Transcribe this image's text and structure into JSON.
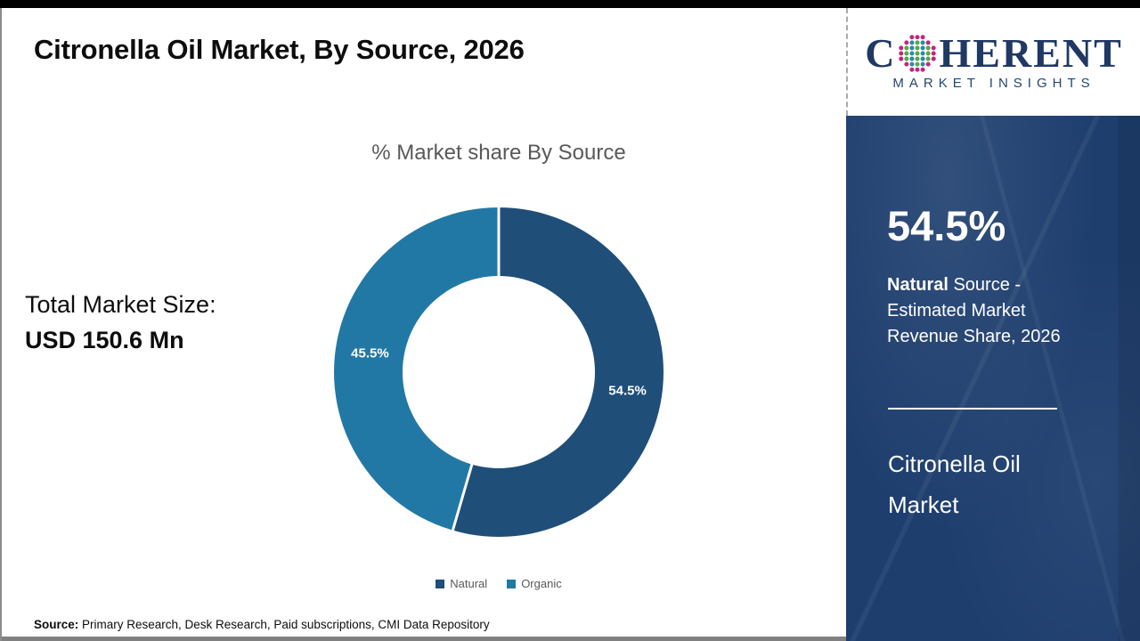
{
  "page": {
    "title": "Citronella Oil Market, By Source, 2026",
    "source_label": "Source:",
    "source_text": " Primary Research, Desk Research, Paid subscriptions, CMI Data Repository"
  },
  "left_block": {
    "total_label": "Total Market Size:",
    "total_value": "USD 150.6 Mn"
  },
  "chart_data": {
    "type": "pie",
    "subtype": "donut",
    "title": "% Market share By Source",
    "categories": [
      "Natural",
      "Organic"
    ],
    "values": [
      54.5,
      45.5
    ],
    "value_labels": [
      "54.5%",
      "45.5%"
    ],
    "colors": [
      "#1f4e79",
      "#2278a5"
    ],
    "start_angle_deg": 0,
    "direction": "clockwise",
    "hole_ratio": 0.58,
    "legend_position": "bottom"
  },
  "logo": {
    "brand_c": "C",
    "brand_rest": "HERENT",
    "subtitle": "MARKET INSIGHTS",
    "globe_colors": {
      "ring": "#c0267e",
      "teal": "#2a89a8",
      "green": "#58a846"
    }
  },
  "panel": {
    "background": "#1e3e6e",
    "stat_value": "54.5%",
    "stat_bold": "Natural",
    "stat_rest": " Source - Estimated Market Revenue Share, 2026",
    "market_name_line1": "Citronella Oil",
    "market_name_line2": "Market"
  }
}
